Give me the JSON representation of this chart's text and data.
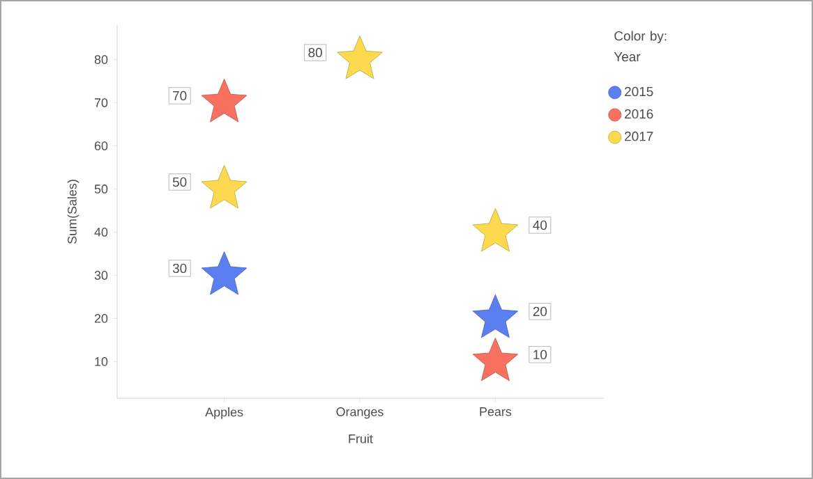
{
  "chart_data": {
    "type": "scatter",
    "xlabel": "Fruit",
    "ylabel": "Sum(Sales)",
    "legend_title": "Color by: Year",
    "categories": [
      "Apples",
      "Oranges",
      "Pears"
    ],
    "series": [
      {
        "name": "2015",
        "color": "#5b7ff0",
        "values": [
          30,
          null,
          20
        ]
      },
      {
        "name": "2016",
        "color": "#f87060",
        "values": [
          70,
          null,
          10
        ]
      },
      {
        "name": "2017",
        "color": "#fcd94e",
        "values": [
          50,
          80,
          40
        ]
      }
    ],
    "ylim": [
      1.5,
      88
    ],
    "yticks": [
      10,
      20,
      30,
      40,
      50,
      60,
      70,
      80
    ],
    "marker": "star",
    "legend": "top right",
    "data_labels": true,
    "grid": false
  }
}
